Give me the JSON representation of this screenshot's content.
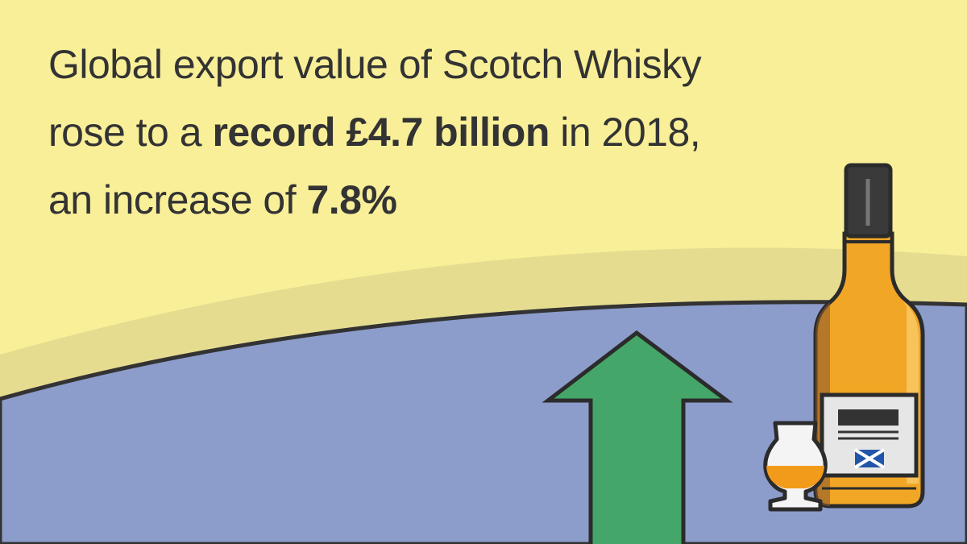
{
  "headline": {
    "lines": [
      [
        {
          "text": "Global export value of Scotch Whisky",
          "bold": false
        }
      ],
      [
        {
          "text": "rose to a ",
          "bold": false
        },
        {
          "text": "record £4.7 billion",
          "bold": true
        },
        {
          "text": " in 2018,",
          "bold": false
        }
      ],
      [
        {
          "text": "an increase of ",
          "bold": false
        },
        {
          "text": "7.8%",
          "bold": true
        }
      ]
    ]
  }
}
